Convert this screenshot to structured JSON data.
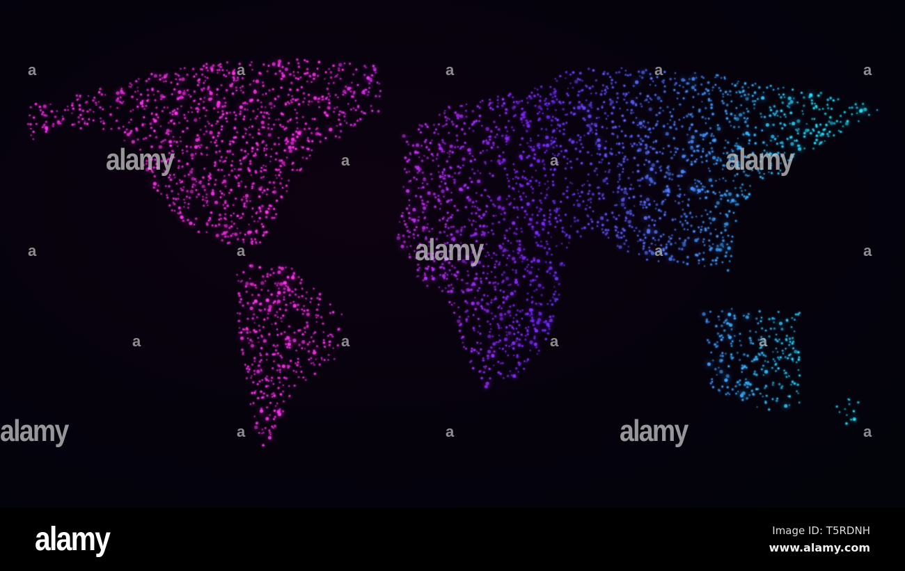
{
  "image": {
    "subject": "glowing dotted world map",
    "colors": {
      "west": "#ff33ee",
      "middle": "#7a2cff",
      "east": "#22e0ff",
      "background": "#020108"
    }
  },
  "watermark": {
    "word": "alamy",
    "letter": "a"
  },
  "footer": {
    "logo": "alamy",
    "image_id": "Image ID: T5RDNH",
    "site": "www.alamy.com"
  }
}
